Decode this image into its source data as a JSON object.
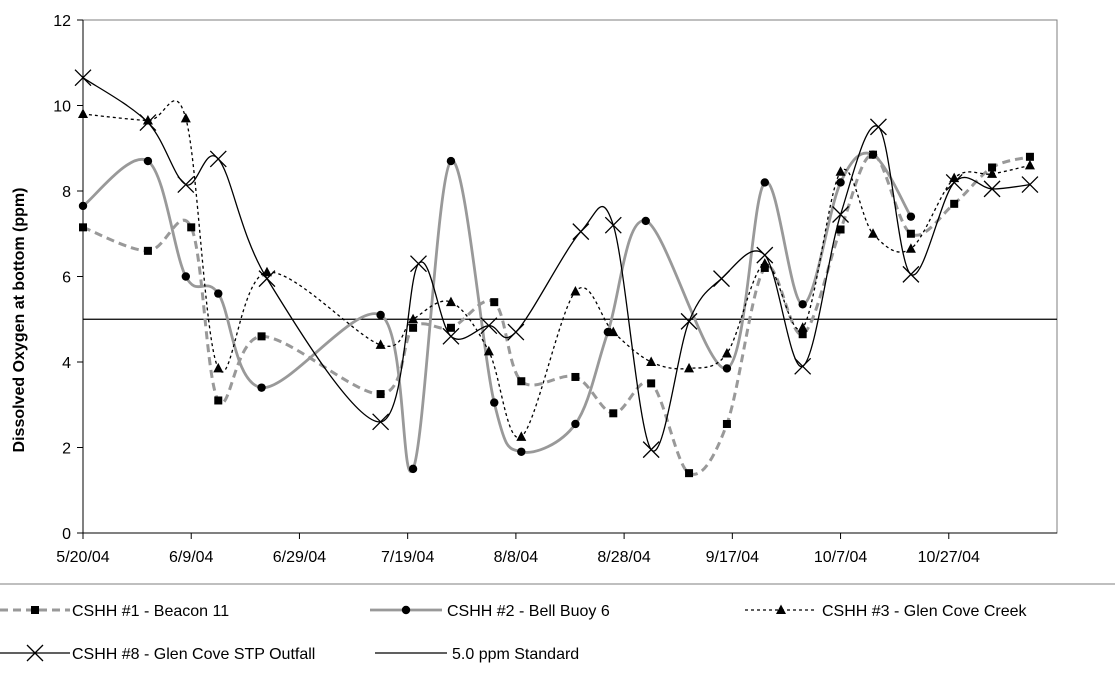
{
  "chart_data": {
    "type": "line",
    "title": "",
    "xlabel": "",
    "ylabel": "Dissolved Oxygen at bottom (ppm)",
    "xlim": [
      "2004-05-20",
      "2004-11-16"
    ],
    "ylim": [
      0,
      12
    ],
    "x_ticks": [
      "5/20/04",
      "6/9/04",
      "6/29/04",
      "7/19/04",
      "8/8/04",
      "8/28/04",
      "9/17/04",
      "10/7/04",
      "10/27/04"
    ],
    "y_ticks": [
      0,
      2,
      4,
      6,
      8,
      10,
      12
    ],
    "grid": false,
    "legend_position": "bottom",
    "series": [
      {
        "name": "CSHH #1 - Beacon 11",
        "color": "#999999",
        "style": "dashed",
        "marker": "square",
        "points": [
          [
            "2004-05-20",
            7.15
          ],
          [
            "2004-06-01",
            6.6
          ],
          [
            "2004-06-09",
            7.15
          ],
          [
            "2004-06-14",
            3.1
          ],
          [
            "2004-06-22",
            4.6
          ],
          [
            "2004-07-14",
            3.25
          ],
          [
            "2004-07-20",
            4.8
          ],
          [
            "2004-07-27",
            4.8
          ],
          [
            "2004-08-04",
            5.4
          ],
          [
            "2004-08-09",
            3.55
          ],
          [
            "2004-08-19",
            3.65
          ],
          [
            "2004-08-26",
            2.8
          ],
          [
            "2004-09-02",
            3.5
          ],
          [
            "2004-09-09",
            1.4
          ],
          [
            "2004-09-16",
            2.55
          ],
          [
            "2004-09-23",
            6.2
          ],
          [
            "2004-09-30",
            4.65
          ],
          [
            "2004-10-07",
            7.1
          ],
          [
            "2004-10-13",
            8.85
          ],
          [
            "2004-10-20",
            7.0
          ],
          [
            "2004-10-28",
            7.7
          ],
          [
            "2004-11-04",
            8.55
          ],
          [
            "2004-11-11",
            8.8
          ]
        ]
      },
      {
        "name": "CSHH #2 - Bell Buoy 6",
        "color": "#999999",
        "style": "solid",
        "marker": "circle",
        "points": [
          [
            "2004-05-20",
            7.65
          ],
          [
            "2004-06-01",
            8.7
          ],
          [
            "2004-06-08",
            6.0
          ],
          [
            "2004-06-14",
            5.6
          ],
          [
            "2004-06-22",
            3.4
          ],
          [
            "2004-07-14",
            5.1
          ],
          [
            "2004-07-20",
            1.5
          ],
          [
            "2004-07-27",
            8.7
          ],
          [
            "2004-08-04",
            3.05
          ],
          [
            "2004-08-09",
            1.9
          ],
          [
            "2004-08-19",
            2.55
          ],
          [
            "2004-08-25",
            4.7
          ],
          [
            "2004-09-01",
            7.3
          ],
          [
            "2004-09-16",
            3.85
          ],
          [
            "2004-09-23",
            8.2
          ],
          [
            "2004-09-30",
            5.35
          ],
          [
            "2004-10-07",
            8.2
          ],
          [
            "2004-10-13",
            8.85
          ],
          [
            "2004-10-20",
            7.4
          ]
        ]
      },
      {
        "name": "CSHH #3 - Glen Cove Creek",
        "color": "#000000",
        "style": "dotted",
        "marker": "triangle",
        "points": [
          [
            "2004-05-20",
            9.8
          ],
          [
            "2004-06-01",
            9.65
          ],
          [
            "2004-06-08",
            9.7
          ],
          [
            "2004-06-14",
            3.85
          ],
          [
            "2004-06-23",
            6.1
          ],
          [
            "2004-07-14",
            4.4
          ],
          [
            "2004-07-20",
            5.0
          ],
          [
            "2004-07-27",
            5.4
          ],
          [
            "2004-08-03",
            4.25
          ],
          [
            "2004-08-09",
            2.25
          ],
          [
            "2004-08-19",
            5.65
          ],
          [
            "2004-08-26",
            4.7
          ],
          [
            "2004-09-02",
            4.0
          ],
          [
            "2004-09-09",
            3.85
          ],
          [
            "2004-09-16",
            4.2
          ],
          [
            "2004-09-23",
            6.3
          ],
          [
            "2004-09-30",
            4.8
          ],
          [
            "2004-10-07",
            8.45
          ],
          [
            "2004-10-13",
            7.0
          ],
          [
            "2004-10-20",
            6.65
          ],
          [
            "2004-10-28",
            8.3
          ],
          [
            "2004-11-04",
            8.4
          ],
          [
            "2004-11-11",
            8.6
          ]
        ]
      },
      {
        "name": "CSHH #8 - Glen Cove STP Outfall",
        "color": "#000000",
        "style": "solid",
        "marker": "x",
        "points": [
          [
            "2004-05-20",
            10.65
          ],
          [
            "2004-06-01",
            9.6
          ],
          [
            "2004-06-08",
            8.15
          ],
          [
            "2004-06-14",
            8.75
          ],
          [
            "2004-06-23",
            5.95
          ],
          [
            "2004-07-14",
            2.6
          ],
          [
            "2004-07-21",
            6.3
          ],
          [
            "2004-07-27",
            4.6
          ],
          [
            "2004-08-03",
            4.85
          ],
          [
            "2004-08-08",
            4.7
          ],
          [
            "2004-08-20",
            7.05
          ],
          [
            "2004-08-26",
            7.2
          ],
          [
            "2004-09-02",
            1.95
          ],
          [
            "2004-09-09",
            4.95
          ],
          [
            "2004-09-15",
            5.95
          ],
          [
            "2004-09-23",
            6.5
          ],
          [
            "2004-09-30",
            3.9
          ],
          [
            "2004-10-07",
            7.45
          ],
          [
            "2004-10-14",
            9.5
          ],
          [
            "2004-10-20",
            6.05
          ],
          [
            "2004-10-28",
            8.2
          ],
          [
            "2004-11-04",
            8.05
          ],
          [
            "2004-11-11",
            8.15
          ]
        ]
      },
      {
        "name": "5.0 ppm Standard",
        "color": "#000000",
        "style": "solid",
        "marker": "none",
        "points": [
          [
            "2004-05-20",
            5.0
          ],
          [
            "2004-11-16",
            5.0
          ]
        ]
      }
    ]
  }
}
